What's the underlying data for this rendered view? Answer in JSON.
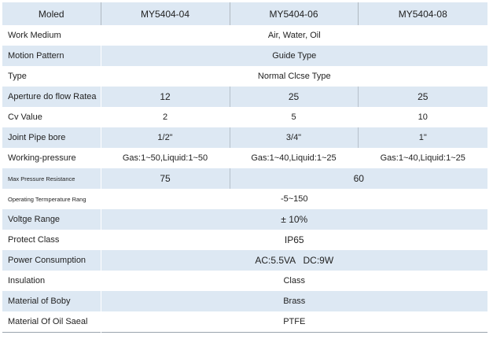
{
  "table": {
    "header": [
      "Moled",
      "MY5404-04",
      "MY5404-06",
      "MY5404-08"
    ],
    "rows": [
      [
        "Work Medium",
        "Air, Water, Oil"
      ],
      [
        "Motion Pattern",
        "Guide Type"
      ],
      [
        "Type",
        "Normal Clcse Type"
      ],
      [
        "Aperture do flow Ratea",
        "12",
        "25",
        "25"
      ],
      [
        "Cv Value",
        "2",
        "5",
        "10"
      ],
      [
        "Joint Pipe bore",
        "1/2\"",
        "3/4\"",
        "1\""
      ],
      [
        "Working-pressure",
        "Gas:1~50,Liquid:1~50",
        "Gas:1~40,Liquid:1~25",
        "Gas:1~40,Liquid:1~25"
      ],
      [
        "Max Pressure Resistance",
        "75",
        "60"
      ],
      [
        "Operating Termperature Rang",
        "-5~150"
      ],
      [
        "Voltge Range",
        "± 10%"
      ],
      [
        "Protect Class",
        "IP65"
      ],
      [
        "Power Consumption",
        "AC:5.5VA   DC:9W"
      ],
      [
        "Insulation",
        "Class"
      ],
      [
        "Material of Boby",
        "Brass"
      ],
      [
        "Material Of Oil Saeal",
        "PTFE"
      ]
    ]
  }
}
